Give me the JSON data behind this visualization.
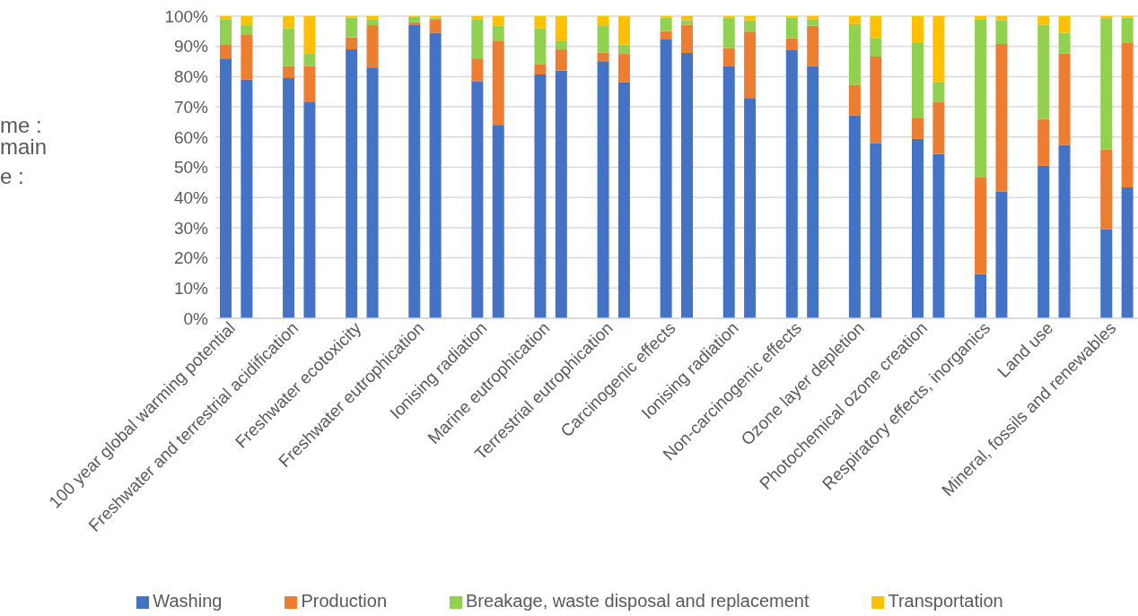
{
  "chart_data": {
    "type": "bar",
    "stacked": true,
    "categories": [
      "100 year global warming potential",
      null,
      null,
      "Freshwater and terrestrial acidification",
      null,
      null,
      "Freshwater ecotoxicity",
      null,
      null,
      "Freshwater eutrophication",
      null,
      null,
      "Ionising radiation",
      null,
      null,
      "Marine eutrophication",
      null,
      null,
      "Terrestrial eutrophication",
      null,
      null,
      "Carcinogenic effects",
      null,
      null,
      "Ionising radiation",
      null,
      null,
      "Non-carcinogenic effects",
      null,
      null,
      "Ozone layer depletion",
      null,
      null,
      "Photochemical ozone creation",
      null,
      null,
      "Respiratory effects, inorganics",
      null,
      null,
      "Land use",
      null,
      null,
      "Mineral, fossils and renewables",
      null
    ],
    "series": [
      {
        "name": "Washing",
        "color": "#4472c4",
        "values": [
          86,
          79,
          null,
          79.5,
          71.5,
          null,
          89,
          83,
          null,
          97,
          94.5,
          null,
          78.5,
          64,
          null,
          80.7,
          82,
          null,
          85.1,
          78.2,
          null,
          92.3,
          87.8,
          null,
          83.5,
          72.7,
          null,
          88.7,
          83.5,
          null,
          67.2,
          58,
          null,
          59.4,
          54.4,
          null,
          14.7,
          42,
          null,
          50.5,
          57.4,
          null,
          29.5,
          43.3
        ]
      },
      {
        "name": "Production",
        "color": "#ed7d31",
        "values": [
          4.5,
          15,
          null,
          4,
          12,
          null,
          4,
          14,
          null,
          1,
          4.5,
          null,
          7.5,
          27.7,
          null,
          3.3,
          7,
          null,
          2.9,
          9.3,
          null,
          2.8,
          9.3,
          null,
          5.9,
          22.2,
          null,
          4,
          13.3,
          null,
          10.1,
          28.7,
          null,
          6.8,
          17.3,
          null,
          32.1,
          48.8,
          null,
          15.5,
          30.2,
          null,
          26.4,
          47.8
        ]
      },
      {
        "name": "Breakage, waste disposal and replacement",
        "color": "#92d050",
        "values": [
          8.5,
          3,
          null,
          12.5,
          4,
          null,
          6.5,
          2,
          null,
          1.8,
          0.5,
          null,
          13,
          5.1,
          null,
          12,
          2.7,
          null,
          9,
          3.1,
          null,
          4.4,
          1.6,
          null,
          10.1,
          3.7,
          null,
          6.8,
          2.2,
          null,
          20.1,
          6.1,
          null,
          24.9,
          6.5,
          null,
          52.2,
          7.9,
          null,
          31.2,
          6.9,
          null,
          43.4,
          8.4
        ]
      },
      {
        "name": "Transportation",
        "color": "#ffc000",
        "values": [
          1,
          3,
          null,
          4,
          12.5,
          null,
          0.5,
          1,
          null,
          0.2,
          0.5,
          null,
          1,
          3.2,
          null,
          4,
          8.3,
          null,
          3,
          9.4,
          null,
          0.5,
          1.3,
          null,
          0.5,
          1.4,
          null,
          0.5,
          1,
          null,
          2.6,
          7.2,
          null,
          8.9,
          21.8,
          null,
          1,
          1.3,
          null,
          2.8,
          5.5,
          null,
          0.7,
          0.5
        ]
      }
    ],
    "ylim": [
      0,
      100
    ],
    "yticks": [
      {
        "value": 0,
        "label": "0%"
      },
      {
        "value": 10,
        "label": "10%"
      },
      {
        "value": 20,
        "label": "20%"
      },
      {
        "value": 30,
        "label": "30%"
      },
      {
        "value": 40,
        "label": "40%"
      },
      {
        "value": 50,
        "label": "50%"
      },
      {
        "value": 60,
        "label": "60%"
      },
      {
        "value": 70,
        "label": "70%"
      },
      {
        "value": 80,
        "label": "80%"
      },
      {
        "value": 90,
        "label": "90%"
      },
      {
        "value": 100,
        "label": "100%"
      }
    ],
    "grid": "y",
    "legend": "bottom",
    "annotations": [
      "me :",
      "main",
      "e :"
    ]
  }
}
